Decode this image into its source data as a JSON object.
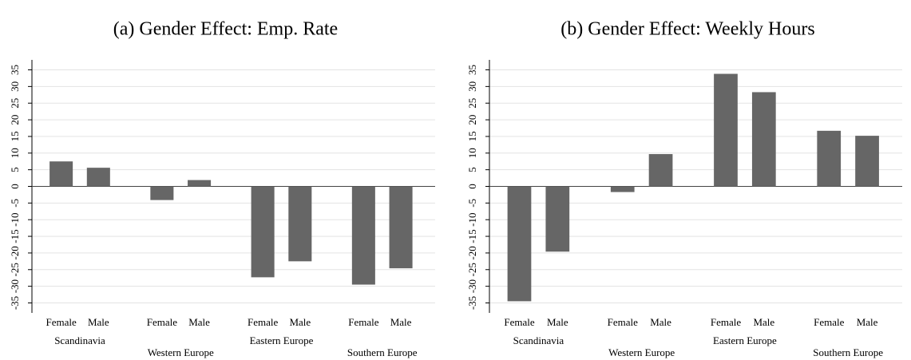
{
  "chart_data": [
    {
      "type": "bar",
      "title": "(a) Gender Effect: Emp. Rate",
      "categories": [
        "Female",
        "Male",
        "Female",
        "Male",
        "Female",
        "Male",
        "Female",
        "Male"
      ],
      "groups": [
        "Scandinavia",
        "Western Europe",
        "Eastern Europe",
        "Southern Europe"
      ],
      "values": [
        7.5,
        5.6,
        -4.1,
        1.9,
        -27.3,
        -22.5,
        -29.5,
        -24.6
      ],
      "color": "#666666",
      "ylim": [
        -38,
        38
      ],
      "yticks": [
        -35,
        -30,
        -25,
        -20,
        -15,
        -10,
        -5,
        0,
        5,
        10,
        15,
        20,
        25,
        30,
        35
      ],
      "grid": true
    },
    {
      "type": "bar",
      "title": "(b) Gender Effect: Weekly Hours",
      "categories": [
        "Female",
        "Male",
        "Female",
        "Male",
        "Female",
        "Male",
        "Female",
        "Male"
      ],
      "groups": [
        "Scandinavia",
        "Western Europe",
        "Eastern Europe",
        "Southern Europe"
      ],
      "values": [
        -34.5,
        -19.6,
        -1.7,
        9.7,
        33.8,
        28.3,
        16.7,
        15.2
      ],
      "color": "#666666",
      "ylim": [
        -38,
        38
      ],
      "yticks": [
        -35,
        -30,
        -25,
        -20,
        -15,
        -10,
        -5,
        0,
        5,
        10,
        15,
        20,
        25,
        30,
        35
      ],
      "grid": true
    }
  ]
}
